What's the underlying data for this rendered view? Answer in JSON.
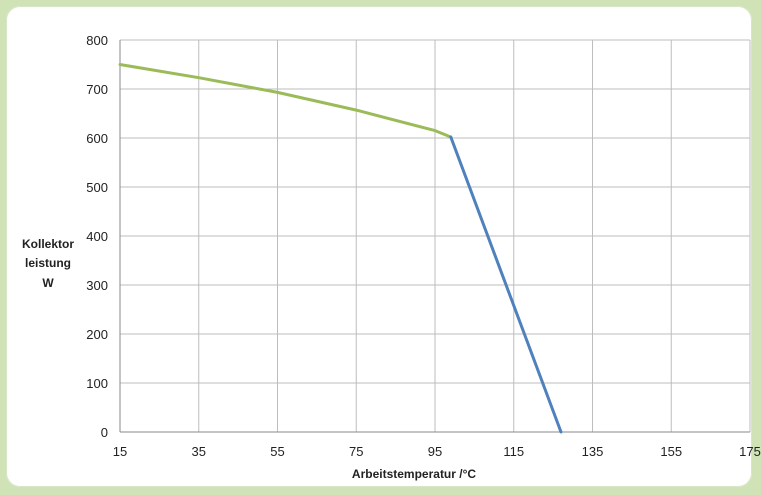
{
  "chart_data": {
    "type": "line",
    "xlabel": "Arbeitstemperatur /°C",
    "ylabel_lines": [
      "Kollektor",
      "leistung",
      "W"
    ],
    "xlim": [
      15,
      175
    ],
    "ylim": [
      0,
      800
    ],
    "x_ticks": [
      15,
      35,
      55,
      75,
      95,
      115,
      135,
      155,
      175
    ],
    "y_ticks": [
      0,
      100,
      200,
      300,
      400,
      500,
      600,
      700,
      800
    ],
    "grid": true,
    "legend": "none",
    "series": [
      {
        "color": "#9bbb59",
        "points": [
          [
            15,
            750
          ],
          [
            35,
            723
          ],
          [
            55,
            693
          ],
          [
            75,
            657
          ],
          [
            95,
            615
          ],
          [
            99,
            602
          ]
        ]
      },
      {
        "color": "#4f81bd",
        "points": [
          [
            99,
            602
          ],
          [
            127,
            0
          ]
        ]
      }
    ]
  }
}
